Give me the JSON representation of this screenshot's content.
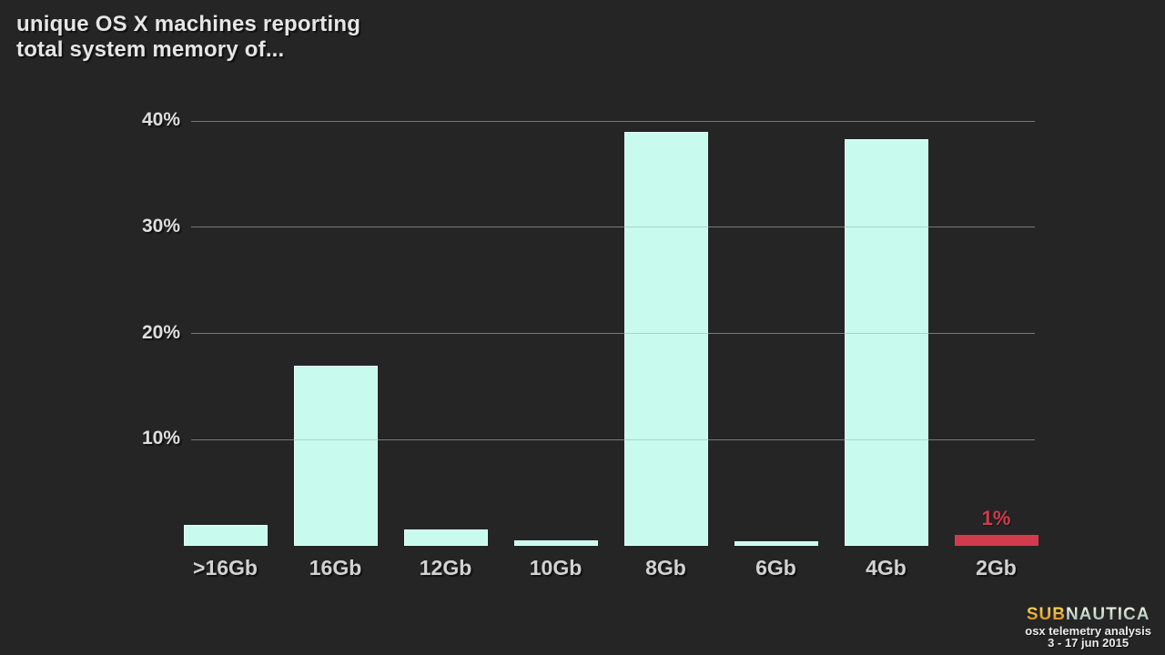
{
  "title": {
    "line1": "unique OS X machines reporting",
    "line2": "total system memory of..."
  },
  "chart_data": {
    "type": "bar",
    "title": "unique OS X machines reporting total system memory of...",
    "categories": [
      ">16Gb",
      "16Gb",
      "12Gb",
      "10Gb",
      "8Gb",
      "6Gb",
      "4Gb",
      "2Gb"
    ],
    "values": [
      2,
      17,
      1.5,
      0.5,
      39,
      0.4,
      38.3,
      1
    ],
    "unit": "%",
    "xlabel": "",
    "ylabel": "",
    "ylim": [
      0,
      44
    ],
    "yticks": [
      10,
      20,
      30,
      40
    ],
    "ytick_labels": [
      "10%",
      "20%",
      "30%",
      "40%"
    ],
    "grid": true,
    "legend": false,
    "bar_color": "#c8fbee",
    "background_color": "#252525",
    "annotation": {
      "category": "2Gb",
      "label": "1%",
      "color": "#d23b4d"
    }
  },
  "footer": {
    "logo_sub": "SUB",
    "logo_nautica": "NAUTICA",
    "subtitle": "osx telemetry analysis",
    "date_range": "3 - 17 jun 2015"
  },
  "colors": {
    "background": "#252525",
    "bar_mint": "#c8fbee",
    "bar_red": "#d23b4d",
    "gridline": "#878787",
    "title_text": "#e6e6e6",
    "axis_text": "#d2d2d2"
  }
}
